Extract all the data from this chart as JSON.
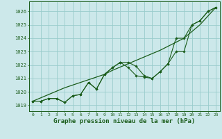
{
  "x_hours": [
    0,
    1,
    2,
    3,
    4,
    5,
    6,
    7,
    8,
    9,
    10,
    11,
    12,
    13,
    14,
    15,
    16,
    17,
    18,
    19,
    20,
    21,
    22,
    23
  ],
  "series1": [
    1019.3,
    1019.3,
    1019.5,
    1019.5,
    1019.2,
    1019.7,
    1019.8,
    1020.7,
    1020.2,
    1021.3,
    1021.8,
    1022.2,
    1022.2,
    1021.9,
    1021.2,
    1021.0,
    1021.5,
    1022.1,
    1023.0,
    1023.0,
    1025.0,
    1025.3,
    1026.0,
    1026.3
  ],
  "series2": [
    1019.3,
    1019.3,
    1019.5,
    1019.5,
    1019.2,
    1019.7,
    1019.8,
    1020.7,
    1020.2,
    1021.3,
    1021.8,
    1022.2,
    1021.8,
    1021.2,
    1021.1,
    1021.0,
    1021.5,
    1022.1,
    1024.0,
    1024.0,
    1025.0,
    1025.3,
    1026.0,
    1026.3
  ],
  "trend": [
    1019.3,
    1019.55,
    1019.8,
    1020.05,
    1020.3,
    1020.5,
    1020.7,
    1020.9,
    1021.1,
    1021.3,
    1021.6,
    1021.85,
    1022.1,
    1022.35,
    1022.6,
    1022.85,
    1023.1,
    1023.4,
    1023.7,
    1024.0,
    1024.5,
    1025.0,
    1025.65,
    1026.3
  ],
  "bg_color": "#cce8ea",
  "grid_color": "#99cccc",
  "line_color": "#1a5c1a",
  "ylabel_values": [
    1019,
    1020,
    1021,
    1022,
    1023,
    1024,
    1025,
    1026
  ],
  "xlabel": "Graphe pression niveau de la mer (hPa)",
  "ylim": [
    1018.55,
    1026.75
  ],
  "xlim": [
    -0.5,
    23.5
  ]
}
